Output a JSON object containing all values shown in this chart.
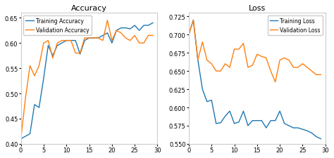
{
  "acc_train": [
    0.41,
    0.415,
    0.42,
    0.478,
    0.472,
    0.53,
    0.595,
    0.575,
    0.595,
    0.6,
    0.605,
    0.605,
    0.605,
    0.578,
    0.605,
    0.61,
    0.61,
    0.61,
    0.615,
    0.62,
    0.6,
    0.625,
    0.63,
    0.63,
    0.628,
    0.635,
    0.625,
    0.635,
    0.635,
    0.64
  ],
  "acc_val": [
    0.41,
    0.49,
    0.555,
    0.535,
    0.555,
    0.6,
    0.605,
    0.57,
    0.6,
    0.605,
    0.605,
    0.605,
    0.58,
    0.58,
    0.61,
    0.61,
    0.61,
    0.61,
    0.605,
    0.645,
    0.605,
    0.625,
    0.62,
    0.61,
    0.605,
    0.615,
    0.6,
    0.6,
    0.615,
    0.615
  ],
  "loss_train": [
    0.7,
    0.72,
    0.665,
    0.625,
    0.608,
    0.61,
    0.578,
    0.579,
    0.588,
    0.595,
    0.578,
    0.58,
    0.595,
    0.575,
    0.582,
    0.582,
    0.582,
    0.572,
    0.582,
    0.582,
    0.595,
    0.578,
    0.575,
    0.572,
    0.572,
    0.57,
    0.568,
    0.565,
    0.56,
    0.557
  ],
  "loss_val": [
    0.7,
    0.72,
    0.665,
    0.69,
    0.665,
    0.66,
    0.65,
    0.65,
    0.66,
    0.655,
    0.68,
    0.68,
    0.688,
    0.655,
    0.658,
    0.673,
    0.67,
    0.668,
    0.65,
    0.635,
    0.665,
    0.668,
    0.665,
    0.655,
    0.655,
    0.66,
    0.655,
    0.65,
    0.645,
    0.645
  ],
  "color_blue": "#1f77b4",
  "color_orange": "#ff7f0e",
  "title_acc": "Accuracy",
  "title_loss": "Loss",
  "label_train_acc": "Training Accuracy",
  "label_val_acc": "Validation Accuracy",
  "label_train_loss": "Training Loss",
  "label_val_loss": "Validation Loss",
  "acc_ylim": [
    0.4,
    0.66
  ],
  "loss_ylim": [
    0.55,
    0.73
  ],
  "acc_yticks": [
    0.4,
    0.45,
    0.5,
    0.55,
    0.6,
    0.65
  ],
  "loss_yticks": [
    0.55,
    0.575,
    0.6,
    0.625,
    0.65,
    0.675,
    0.7,
    0.725
  ],
  "xlim": [
    0,
    30
  ],
  "xticks": [
    0,
    5,
    10,
    15,
    20,
    25,
    30
  ],
  "bg_color": "#ffffff",
  "axes_bg_color": "#ffffff",
  "spine_color": "#cccccc",
  "linewidth": 1.0,
  "title_fontsize": 8,
  "tick_fontsize": 6,
  "legend_fontsize": 5.5
}
